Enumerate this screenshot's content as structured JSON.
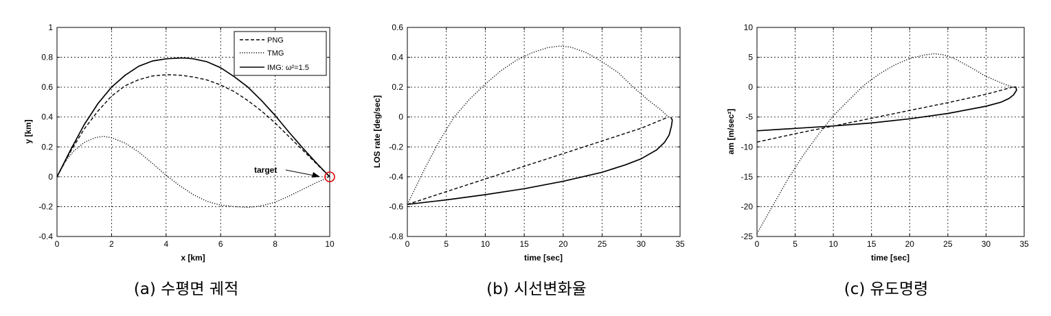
{
  "figure": {
    "charts": [
      {
        "id": "a",
        "caption": "(a) 수평면 궤적",
        "chart_data": {
          "type": "line",
          "xlabel": "x [km]",
          "ylabel": "y [km]",
          "xlim": [
            0,
            10
          ],
          "ylim": [
            -0.4,
            1
          ],
          "xticks": [
            0,
            2,
            4,
            6,
            8,
            10
          ],
          "yticks": [
            -0.4,
            -0.2,
            0,
            0.2,
            0.4,
            0.6,
            0.8,
            1
          ],
          "grid": true,
          "legend": "top-right",
          "series": [
            {
              "name": "PNG",
              "style": "dashed",
              "x": [
                0,
                0.5,
                1,
                1.5,
                2,
                2.5,
                3,
                3.5,
                4,
                4.3,
                4.6,
                5,
                5.5,
                6,
                6.5,
                7,
                7.5,
                8,
                8.5,
                9,
                9.5,
                10
              ],
              "y": [
                0,
                0.17,
                0.32,
                0.44,
                0.54,
                0.61,
                0.65,
                0.675,
                0.683,
                0.682,
                0.678,
                0.668,
                0.648,
                0.615,
                0.57,
                0.51,
                0.44,
                0.36,
                0.27,
                0.18,
                0.09,
                0
              ]
            },
            {
              "name": "TMG",
              "style": "dotted",
              "x": [
                0,
                0.3,
                0.6,
                1,
                1.4,
                1.7,
                2,
                2.5,
                3,
                3.5,
                4,
                4.5,
                5,
                5.5,
                6,
                6.5,
                7,
                7.3,
                7.6,
                8,
                8.5,
                9,
                9.5,
                10
              ],
              "y": [
                0,
                0.1,
                0.17,
                0.23,
                0.262,
                0.27,
                0.262,
                0.225,
                0.165,
                0.09,
                0.01,
                -0.06,
                -0.12,
                -0.165,
                -0.19,
                -0.2,
                -0.205,
                -0.2,
                -0.19,
                -0.17,
                -0.13,
                -0.085,
                -0.04,
                0
              ]
            },
            {
              "name": "IMG: ω²=1.5",
              "style": "solid",
              "x": [
                0,
                0.5,
                1,
                1.5,
                2,
                2.5,
                3,
                3.5,
                4,
                4.5,
                4.7,
                5,
                5.5,
                6,
                6.5,
                7,
                7.5,
                8,
                8.5,
                9,
                9.5,
                10
              ],
              "y": [
                0,
                0.18,
                0.35,
                0.49,
                0.6,
                0.68,
                0.74,
                0.775,
                0.79,
                0.795,
                0.795,
                0.79,
                0.77,
                0.73,
                0.67,
                0.6,
                0.51,
                0.41,
                0.3,
                0.195,
                0.095,
                0
              ]
            }
          ],
          "annotations": [
            {
              "text": "target",
              "x": 10,
              "y": 0,
              "marker": "circle",
              "marker_color": "#e00000"
            }
          ]
        }
      },
      {
        "id": "b",
        "caption": "(b) 시선변화율",
        "chart_data": {
          "type": "line",
          "xlabel": "time [sec]",
          "ylabel": "LOS rate [deg/sec]",
          "xlim": [
            0,
            35
          ],
          "ylim": [
            -0.8,
            0.6
          ],
          "xticks": [
            0,
            5,
            10,
            15,
            20,
            25,
            30,
            35
          ],
          "yticks": [
            -0.8,
            -0.6,
            -0.4,
            -0.2,
            0,
            0.2,
            0.4,
            0.6
          ],
          "grid": true,
          "series": [
            {
              "style": "dashed",
              "x": [
                0,
                5,
                10,
                15,
                20,
                25,
                30,
                33.5
              ],
              "y": [
                -0.585,
                -0.5,
                -0.415,
                -0.33,
                -0.245,
                -0.16,
                -0.075,
                0
              ]
            },
            {
              "style": "dotted",
              "x": [
                0,
                2,
                4,
                6,
                8,
                10,
                12,
                14,
                16,
                18,
                19.5,
                21,
                23,
                25,
                27,
                29,
                31,
                32.5,
                33.5
              ],
              "y": [
                -0.585,
                -0.37,
                -0.17,
                0,
                0.12,
                0.22,
                0.31,
                0.38,
                0.43,
                0.465,
                0.475,
                0.468,
                0.43,
                0.37,
                0.3,
                0.2,
                0.11,
                0.05,
                0
              ]
            },
            {
              "style": "solid",
              "x": [
                0,
                5,
                10,
                15,
                20,
                25,
                28,
                30,
                32,
                33,
                33.6,
                33.9,
                34,
                33.8
              ],
              "y": [
                -0.585,
                -0.555,
                -0.52,
                -0.48,
                -0.43,
                -0.37,
                -0.32,
                -0.28,
                -0.22,
                -0.17,
                -0.12,
                -0.06,
                -0.02,
                0
              ]
            }
          ]
        }
      },
      {
        "id": "c",
        "caption": "(c) 유도명령",
        "chart_data": {
          "type": "line",
          "xlabel": "time [sec]",
          "ylabel": "am [m/sec²]",
          "xlim": [
            0,
            35
          ],
          "ylim": [
            -25,
            10
          ],
          "xticks": [
            0,
            5,
            10,
            15,
            20,
            25,
            30,
            35
          ],
          "yticks": [
            -25,
            -20,
            -15,
            -10,
            -5,
            0,
            5,
            10
          ],
          "grid": true,
          "series": [
            {
              "style": "dashed",
              "x": [
                0,
                5,
                10,
                15,
                20,
                25,
                30,
                33.5
              ],
              "y": [
                -9.2,
                -7.8,
                -6.5,
                -5.2,
                -3.9,
                -2.6,
                -1.2,
                0
              ]
            },
            {
              "style": "dotted",
              "x": [
                0,
                2,
                4,
                6,
                8,
                10,
                12,
                14,
                16,
                18,
                20,
                22,
                23.2,
                24.5,
                26,
                28,
                30,
                32,
                33.5
              ],
              "y": [
                -24.5,
                -20,
                -15.5,
                -11.5,
                -8,
                -4.8,
                -2.2,
                0.3,
                2.2,
                3.7,
                4.8,
                5.4,
                5.6,
                5.4,
                4.7,
                3.3,
                1.8,
                0.7,
                0
              ]
            },
            {
              "style": "solid",
              "x": [
                0,
                5,
                10,
                15,
                20,
                25,
                30,
                32,
                33,
                33.6,
                34,
                33.9,
                33.6
              ],
              "y": [
                -7.3,
                -6.9,
                -6.5,
                -6,
                -5.3,
                -4.4,
                -3.2,
                -2.5,
                -1.9,
                -1.3,
                -0.5,
                0,
                0
              ]
            }
          ]
        }
      }
    ]
  }
}
